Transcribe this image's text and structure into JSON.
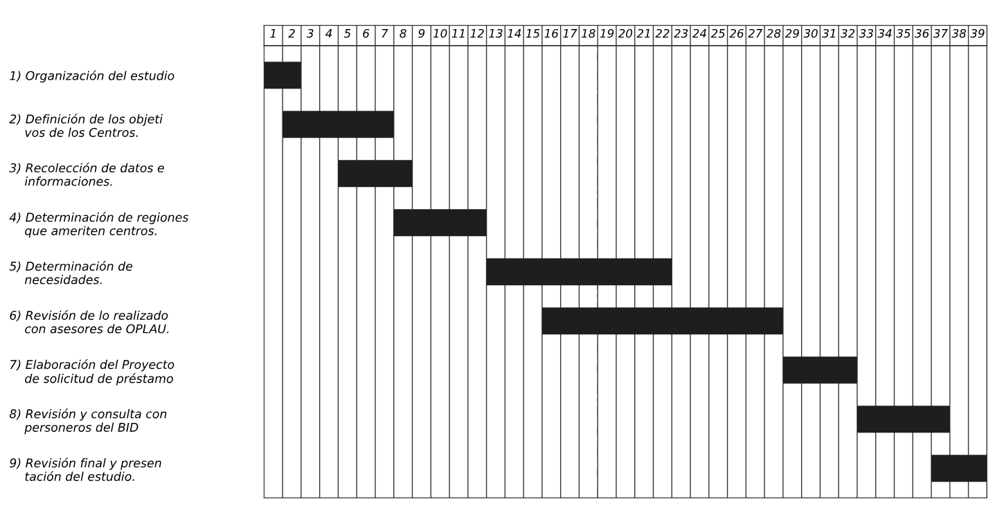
{
  "chart_data": {
    "type": "bar",
    "orientation": "horizontal",
    "categories": [
      "1) Organización del estudio",
      "2) Definición de los objeti\n    vos de los Centros.",
      "3) Recolección de datos e\n    informaciones.",
      "4) Determinación de regiones\n    que ameriten centros.",
      "5) Determinación de\n    necesidades.",
      "6) Revisión de lo realizado\n    con asesores de OPLAU.",
      "7) Elaboración del Proyecto\n    de solicitud de préstamo",
      "8) Revisión y consulta con\n    personeros del BID",
      "9) Revisión final y presen\n    tación del estudio."
    ],
    "base": [
      0,
      1,
      4,
      7,
      12,
      15,
      28,
      32,
      36
    ],
    "values": [
      2,
      6,
      4,
      5,
      10,
      13,
      4,
      5,
      3
    ],
    "color": "#1e1e1e",
    "xlim": [
      0,
      39
    ],
    "xticks": [
      {
        "value": 0,
        "label": null
      },
      {
        "value": 1,
        "label": null
      },
      {
        "value": 2,
        "label": null
      },
      {
        "value": 3,
        "label": null
      },
      {
        "value": 4,
        "label": null
      },
      {
        "value": 5,
        "label": null
      },
      {
        "value": 6,
        "label": null
      },
      {
        "value": 7,
        "label": null
      },
      {
        "value": 8,
        "label": null
      },
      {
        "value": 9,
        "label": null
      },
      {
        "value": 10,
        "label": null
      },
      {
        "value": 11,
        "label": null
      },
      {
        "value": 12,
        "label": null
      },
      {
        "value": 13,
        "label": null
      },
      {
        "value": 14,
        "label": null
      },
      {
        "value": 15,
        "label": null
      },
      {
        "value": 16,
        "label": null
      },
      {
        "value": 17,
        "label": null
      },
      {
        "value": 18,
        "label": null
      },
      {
        "value": 19,
        "label": null
      },
      {
        "value": 20,
        "label": null
      },
      {
        "value": 21,
        "label": null
      },
      {
        "value": 22,
        "label": null
      },
      {
        "value": 23,
        "label": null
      },
      {
        "value": 24,
        "label": null
      },
      {
        "value": 25,
        "label": null
      },
      {
        "value": 26,
        "label": null
      },
      {
        "value": 27,
        "label": null
      },
      {
        "value": 28,
        "label": null
      },
      {
        "value": 29,
        "label": null
      },
      {
        "value": 30,
        "label": null
      },
      {
        "value": 31,
        "label": null
      },
      {
        "value": 32,
        "label": null
      },
      {
        "value": 33,
        "label": null
      },
      {
        "value": 34,
        "label": null
      },
      {
        "value": 35,
        "label": null
      },
      {
        "value": 36,
        "label": null
      },
      {
        "value": 37,
        "label": null
      },
      {
        "value": 38,
        "label": null
      },
      {
        "value": 39,
        "label": null
      },
      {
        "value": 0.5,
        "label": "1"
      },
      {
        "value": 1.5,
        "label": "2"
      },
      {
        "value": 2.5,
        "label": "3"
      },
      {
        "value": 3.5,
        "label": "4"
      },
      {
        "value": 4.5,
        "label": "5"
      },
      {
        "value": 5.5,
        "label": "6"
      },
      {
        "value": 6.5,
        "label": "7"
      },
      {
        "value": 7.5,
        "label": "8"
      },
      {
        "value": 8.5,
        "label": "9"
      },
      {
        "value": 9.5,
        "label": "10"
      },
      {
        "value": 10.5,
        "label": "11"
      },
      {
        "value": 11.5,
        "label": "12"
      },
      {
        "value": 12.5,
        "label": "13"
      },
      {
        "value": 13.5,
        "label": "14"
      },
      {
        "value": 14.5,
        "label": "15"
      },
      {
        "value": 15.5,
        "label": "16"
      },
      {
        "value": 16.5,
        "label": "17"
      },
      {
        "value": 17.5,
        "label": "18"
      },
      {
        "value": 18.5,
        "label": "19"
      },
      {
        "value": 19.5,
        "label": "20"
      },
      {
        "value": 20.5,
        "label": "21"
      },
      {
        "value": 21.5,
        "label": "22"
      },
      {
        "value": 22.5,
        "label": "23"
      },
      {
        "value": 23.5,
        "label": "24"
      },
      {
        "value": 24.5,
        "label": "25"
      },
      {
        "value": 25.5,
        "label": "26"
      },
      {
        "value": 26.5,
        "label": "27"
      },
      {
        "value": 27.5,
        "label": "28"
      },
      {
        "value": 28.5,
        "label": "29"
      },
      {
        "value": 29.5,
        "label": "30"
      },
      {
        "value": 30.5,
        "label": "31"
      },
      {
        "value": 31.5,
        "label": "32"
      },
      {
        "value": 32.5,
        "label": "33"
      },
      {
        "value": 33.5,
        "label": "34"
      },
      {
        "value": 34.5,
        "label": "35"
      },
      {
        "value": 35.5,
        "label": "36"
      },
      {
        "value": 36.5,
        "label": "37"
      },
      {
        "value": 37.5,
        "label": "38"
      },
      {
        "value": 38.5,
        "label": "39"
      }
    ],
    "grid": "x",
    "ref_lines": [
      {
        "axis": "x",
        "value": 18,
        "label": null,
        "line_style": "dashed",
        "color": "#555555"
      }
    ]
  }
}
